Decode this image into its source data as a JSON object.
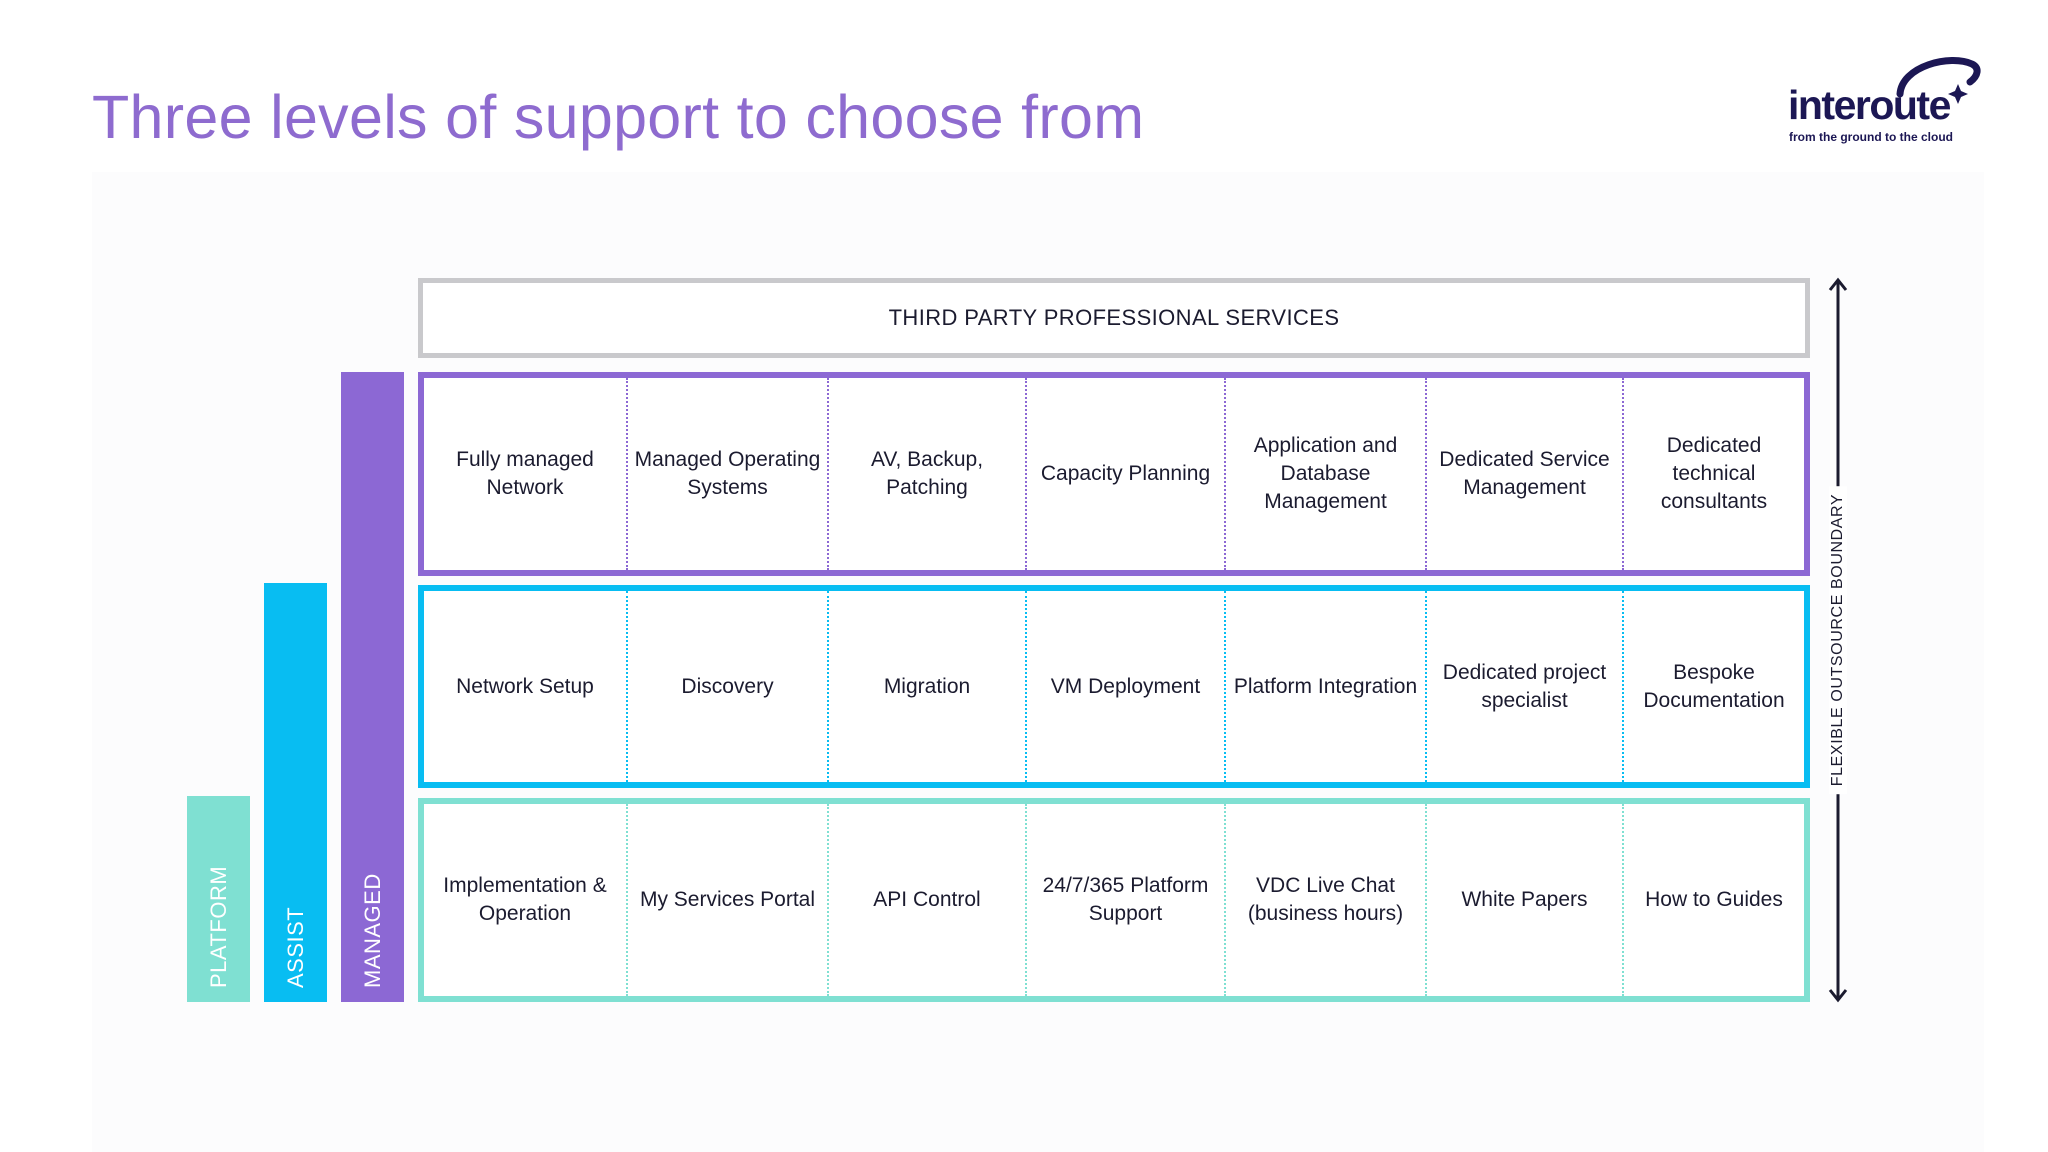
{
  "title": "Three levels of support to choose from",
  "logo": {
    "word": "interoute",
    "tagline": "from the ground to the cloud"
  },
  "colors": {
    "title": "#8e6bcf",
    "managed": "#8c68d4",
    "assist": "#08bdf2",
    "platform": "#7fe0d2",
    "third_party_border": "#c9c9cc",
    "logo": "#1c1754"
  },
  "tiers": {
    "platform": "PLATFORM",
    "assist": "ASSIST",
    "managed": "MANAGED"
  },
  "third_party": "THIRD PARTY PROFESSIONAL SERVICES",
  "rows": {
    "managed": [
      "Fully managed Network",
      "Managed Operating Systems",
      "AV, Backup, Patching",
      "Capacity Planning",
      "Application and Database Management",
      "Dedicated Service Management",
      "Dedicated technical consultants"
    ],
    "assist": [
      "Network Setup",
      "Discovery",
      "Migration",
      "VM Deployment",
      "Platform Integration",
      "Dedicated project specialist",
      "Bespoke Documentation"
    ],
    "platform": [
      "Implementation & Operation",
      "My Services Portal",
      "API Control",
      "24/7/365 Platform Support",
      "VDC Live Chat (business hours)",
      "White Papers",
      "How to Guides"
    ]
  },
  "boundary_label": "FLEXIBLE OUTSOURCE BOUNDARY"
}
